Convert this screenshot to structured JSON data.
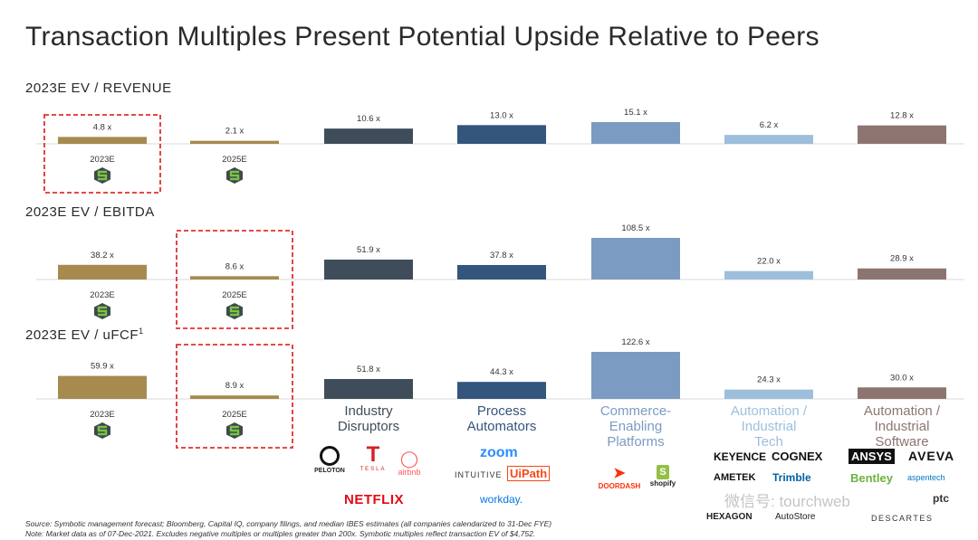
{
  "title": "Transaction Multiples Present Potential Upside Relative to Peers",
  "colors": {
    "symbotic": "#a68a4e",
    "industry_disruptors": "#3f4d5a",
    "process_automators": "#34557c",
    "commerce_enabling": "#7b9bc3",
    "automation_industrial_tech": "#9dbfdc",
    "automation_industrial_software": "#8c7570",
    "highlight_box": "#e0302f"
  },
  "chart_data": [
    {
      "type": "bar",
      "section": "revenue",
      "title": "2023E EV / REVENUE",
      "categories": [
        "2023E",
        "2025E",
        "Industry Disruptors",
        "Process Automators",
        "Commerce-Enabling Platforms",
        "Automation / Industrial Tech",
        "Automation / Industrial Software"
      ],
      "values": [
        4.8,
        2.1,
        10.6,
        13.0,
        15.1,
        6.2,
        12.8
      ],
      "labels": [
        "4.8 x",
        "2.1 x",
        "10.6 x",
        "13.0 x",
        "15.1 x",
        "6.2 x",
        "12.8 x"
      ],
      "highlighted": "2023E"
    },
    {
      "type": "bar",
      "section": "ebitda",
      "title": "2023E EV / EBITDA",
      "categories": [
        "2023E",
        "2025E",
        "Industry Disruptors",
        "Process Automators",
        "Commerce-Enabling Platforms",
        "Automation / Industrial Tech",
        "Automation / Industrial Software"
      ],
      "values": [
        38.2,
        8.6,
        51.9,
        37.8,
        108.5,
        22.0,
        28.9
      ],
      "labels": [
        "38.2 x",
        "8.6 x",
        "51.9 x",
        "37.8 x",
        "108.5 x",
        "22.0 x",
        "28.9 x"
      ],
      "highlighted": "2025E"
    },
    {
      "type": "bar",
      "section": "ufcf",
      "title": "2023E EV / uFCF",
      "title_superscript": "1",
      "categories": [
        "2023E",
        "2025E",
        "Industry Disruptors",
        "Process Automators",
        "Commerce-Enabling Platforms",
        "Automation / Industrial Tech",
        "Automation / Industrial Software"
      ],
      "values": [
        59.9,
        8.9,
        51.8,
        44.3,
        122.6,
        24.3,
        30.0
      ],
      "labels": [
        "59.9 x",
        "8.9 x",
        "51.8 x",
        "44.3 x",
        "122.6 x",
        "24.3 x",
        "30.0 x"
      ],
      "highlighted": "2025E"
    }
  ],
  "year_labels": [
    "2023E",
    "2025E"
  ],
  "groups": [
    {
      "lines": [
        "Industry",
        "Disruptors"
      ],
      "color": "#3f4d5a"
    },
    {
      "lines": [
        "Process",
        "Automators"
      ],
      "color": "#34557c"
    },
    {
      "lines": [
        "Commerce-",
        "Enabling",
        "Platforms"
      ],
      "color": "#7b9bc3"
    },
    {
      "lines": [
        "Automation /",
        "Industrial",
        "Tech"
      ],
      "color": "#9dbfdc"
    },
    {
      "lines": [
        "Automation /",
        "Industrial",
        "Software"
      ],
      "color": "#8c7570"
    }
  ],
  "logos": {
    "industry_disruptors": [
      "PELOTON",
      "TESLA",
      "airbnb",
      "NETFLIX"
    ],
    "process_automators": [
      "zoom",
      "INTUITIVE",
      "UiPath",
      "workday."
    ],
    "commerce_enabling": [
      "DOORDASH",
      "shopify"
    ],
    "automation_industrial_tech": [
      "KEYENCE",
      "COGNEX",
      "AMETEK",
      "Trimble",
      "HEXAGON",
      "AutoStore"
    ],
    "automation_industrial_software": [
      "ANSYS",
      "AVEVA",
      "Bentley",
      "aspentech",
      "ptc",
      "DESCARTES"
    ]
  },
  "watermark": "微信号: tourchweb",
  "footnotes": [
    "Source: Symbotic management forecast; Bloomberg, Capital IQ, company filings, and median IBES estimates (all companies calendarized to 31-Dec FYE)",
    "Note: Market data as of 07-Dec-2021. Excludes negative multiples or multiples greater than 200x. Symbotic multiples reflect transaction EV of $4,752."
  ]
}
